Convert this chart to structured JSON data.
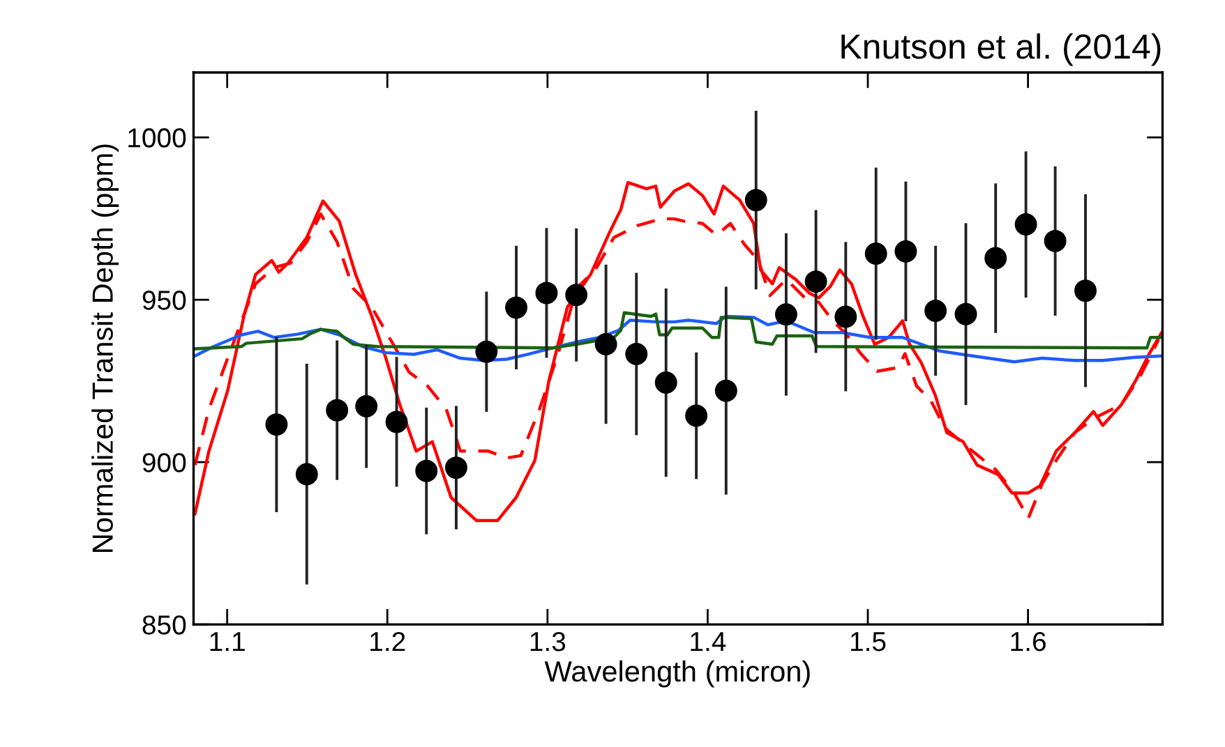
{
  "chart_data": {
    "type": "line",
    "xlabel": "Wavelength (micron)",
    "ylabel": "Normalized Transit Depth (ppm)",
    "annotations": [
      "Knutson et al. (2014)"
    ],
    "xlim": [
      1.079,
      1.684
    ],
    "xticks": [
      1.1,
      1.2,
      1.3,
      1.4,
      1.5,
      1.6
    ],
    "ylim": [
      850,
      1020
    ],
    "yticks": [
      850,
      900,
      950,
      1000
    ],
    "grid": false,
    "legend": false,
    "series": [
      {
        "color": "#ff0000",
        "line_style": "solid",
        "marker": "none",
        "x": [
          1.0799,
          1.0886,
          1.1003,
          1.1104,
          1.1177,
          1.1279,
          1.1322,
          1.138,
          1.1497,
          1.1598,
          1.17,
          1.1802,
          1.1903,
          1.1991,
          1.2078,
          1.218,
          1.2281,
          1.2398,
          1.2557,
          1.2688,
          1.2804,
          1.2921,
          1.3008,
          1.3124,
          1.3269,
          1.3386,
          1.3458,
          1.3502,
          1.3618,
          1.3676,
          1.3705,
          1.3793,
          1.388,
          1.3968,
          1.404,
          1.4098,
          1.42,
          1.4287,
          1.4331,
          1.4404,
          1.4447,
          1.4549,
          1.4636,
          1.4694,
          1.4767,
          1.4825,
          1.4898,
          1.497,
          1.5043,
          1.513,
          1.5217,
          1.5261,
          1.5334,
          1.5421,
          1.5493,
          1.5595,
          1.5682,
          1.5813,
          1.59,
          1.6002,
          1.6075,
          1.6176,
          1.6293,
          1.6409,
          1.6467,
          1.6583,
          1.667,
          1.6757,
          1.6835
        ],
        "values": [
          884.1,
          903.4,
          922.0,
          944.9,
          957.8,
          962.1,
          958.5,
          961.3,
          969.2,
          980.4,
          974.2,
          957.8,
          944.9,
          932.0,
          917.7,
          903.4,
          906.3,
          889.1,
          882.0,
          882.0,
          889.1,
          900.5,
          924.9,
          947.7,
          957.8,
          970.6,
          977.8,
          986.1,
          984.2,
          985.0,
          978.5,
          983.5,
          985.7,
          982.1,
          976.4,
          985.0,
          980.7,
          973.5,
          959.2,
          954.9,
          959.9,
          956.3,
          952.0,
          950.6,
          954.2,
          959.2,
          954.9,
          944.9,
          936.3,
          938.4,
          943.5,
          936.3,
          930.6,
          920.6,
          909.1,
          906.3,
          899.1,
          896.2,
          890.5,
          890.5,
          892.7,
          903.4,
          909.1,
          915.6,
          911.3,
          917.7,
          924.9,
          933.4,
          939.9
        ]
      },
      {
        "color": "#ff0000",
        "line_style": "dashed",
        "marker": "none",
        "x": [
          1.0799,
          1.0886,
          1.1003,
          1.109,
          1.1177,
          1.1293,
          1.1395,
          1.1497,
          1.1584,
          1.1686,
          1.1787,
          1.1903,
          1.202,
          1.2136,
          1.2252,
          1.2368,
          1.2456,
          1.263,
          1.2746,
          1.2833,
          1.295,
          1.3066,
          1.3182,
          1.3298,
          1.3415,
          1.356,
          1.3705,
          1.3793,
          1.3851,
          1.3968,
          1.4055,
          1.4142,
          1.4229,
          1.4316,
          1.4389,
          1.4491,
          1.4607,
          1.4694,
          1.4781,
          1.4869,
          1.4956,
          1.5057,
          1.5188,
          1.5232,
          1.5305,
          1.5392,
          1.5479,
          1.5653,
          1.5798,
          1.5914,
          1.6002,
          1.6089,
          1.6176,
          1.6293,
          1.6409,
          1.6583,
          1.6699,
          1.6815
        ],
        "values": [
          899.1,
          916.3,
          932.0,
          943.5,
          954.9,
          959.9,
          961.3,
          967.8,
          976.4,
          967.8,
          953.5,
          947.7,
          937.7,
          927.7,
          923.4,
          916.3,
          903.4,
          903.4,
          901.3,
          902.0,
          916.3,
          933.4,
          953.5,
          959.2,
          969.2,
          972.8,
          974.9,
          974.9,
          974.2,
          973.5,
          969.9,
          973.5,
          967.1,
          962.1,
          951.3,
          956.3,
          950.6,
          949.2,
          943.5,
          939.2,
          933.4,
          928.0,
          929.1,
          933.4,
          923.4,
          919.1,
          910.6,
          903.4,
          897.7,
          890.5,
          882.7,
          893.4,
          900.5,
          909.1,
          913.4,
          917.7,
          926.3,
          937.7
        ]
      },
      {
        "color": "#1f5cff",
        "line_style": "solid",
        "marker": "none",
        "x": [
          1.0799,
          1.0915,
          1.109,
          1.1192,
          1.1293,
          1.1438,
          1.1584,
          1.17,
          1.1845,
          1.1991,
          1.2165,
          1.231,
          1.2456,
          1.2601,
          1.2746,
          1.2892,
          1.3037,
          1.3182,
          1.3327,
          1.3444,
          1.3516,
          1.3676,
          1.3793,
          1.388,
          1.4055,
          1.4113,
          1.4287,
          1.4375,
          1.4491,
          1.4665,
          1.4839,
          1.5014,
          1.5217,
          1.545,
          1.5653,
          1.5914,
          1.6089,
          1.6293,
          1.6467,
          1.667,
          1.6835
        ],
        "values": [
          932.7,
          935.6,
          939.2,
          940.3,
          938.4,
          939.4,
          940.9,
          939.2,
          935.6,
          933.7,
          933.2,
          934.6,
          932.0,
          931.3,
          931.7,
          933.4,
          935.2,
          937.0,
          938.4,
          940.6,
          943.7,
          943.2,
          943.2,
          943.7,
          942.7,
          944.9,
          944.6,
          942.3,
          943.5,
          939.9,
          939.9,
          938.4,
          938.4,
          934.2,
          932.7,
          930.9,
          932.0,
          931.3,
          931.3,
          932.3,
          932.7
        ]
      },
      {
        "color": "#1a6410",
        "line_style": "solid",
        "marker": "none",
        "x": [
          1.0799,
          1.109,
          1.1119,
          1.1467,
          1.1526,
          1.1584,
          1.1686,
          1.1729,
          1.1787,
          1.1933,
          1.3037,
          1.3182,
          1.3415,
          1.3458,
          1.3479,
          1.3647,
          1.3676,
          1.37,
          1.3749,
          1.3778,
          1.3968,
          1.4026,
          1.4069,
          1.4084,
          1.4273,
          1.4302,
          1.4404,
          1.4433,
          1.4651,
          1.468,
          1.6743,
          1.6764,
          1.6835
        ],
        "values": [
          934.9,
          935.6,
          936.6,
          938.0,
          939.7,
          940.9,
          940.3,
          938.4,
          936.3,
          935.6,
          935.2,
          936.3,
          938.4,
          940.6,
          946.0,
          944.9,
          945.6,
          939.2,
          939.2,
          941.3,
          941.3,
          938.4,
          938.4,
          944.6,
          944.2,
          937.0,
          936.3,
          938.9,
          938.9,
          935.6,
          935.2,
          938.4,
          938.4
        ]
      },
      {
        "type": "scatter",
        "color": "#000000",
        "marker": "circle",
        "x": [
          1.1308,
          1.1497,
          1.1686,
          1.1869,
          1.2058,
          1.2244,
          1.243,
          1.2619,
          1.2805,
          1.2994,
          1.318,
          1.3365,
          1.3555,
          1.374,
          1.3929,
          1.4115,
          1.4302,
          1.449,
          1.4676,
          1.4862,
          1.5051,
          1.5237,
          1.5423,
          1.5612,
          1.5798,
          1.5987,
          1.617,
          1.6359
        ],
        "values": [
          911.6,
          896.3,
          916.0,
          917.2,
          912.4,
          897.3,
          898.3,
          934.0,
          947.6,
          952.1,
          951.5,
          936.3,
          933.3,
          924.5,
          914.3,
          922.0,
          980.7,
          945.5,
          955.6,
          944.8,
          964.2,
          964.9,
          946.6,
          945.6,
          962.8,
          973.2,
          968.1,
          952.8
        ],
        "errors": [
          27,
          34,
          21.5,
          19,
          20,
          19.5,
          19,
          18.5,
          19,
          20,
          20.5,
          24.5,
          25,
          29,
          19.5,
          32,
          27.5,
          25,
          22,
          23,
          26.5,
          21.5,
          20,
          28,
          23,
          22.5,
          23,
          29.7
        ]
      }
    ]
  }
}
